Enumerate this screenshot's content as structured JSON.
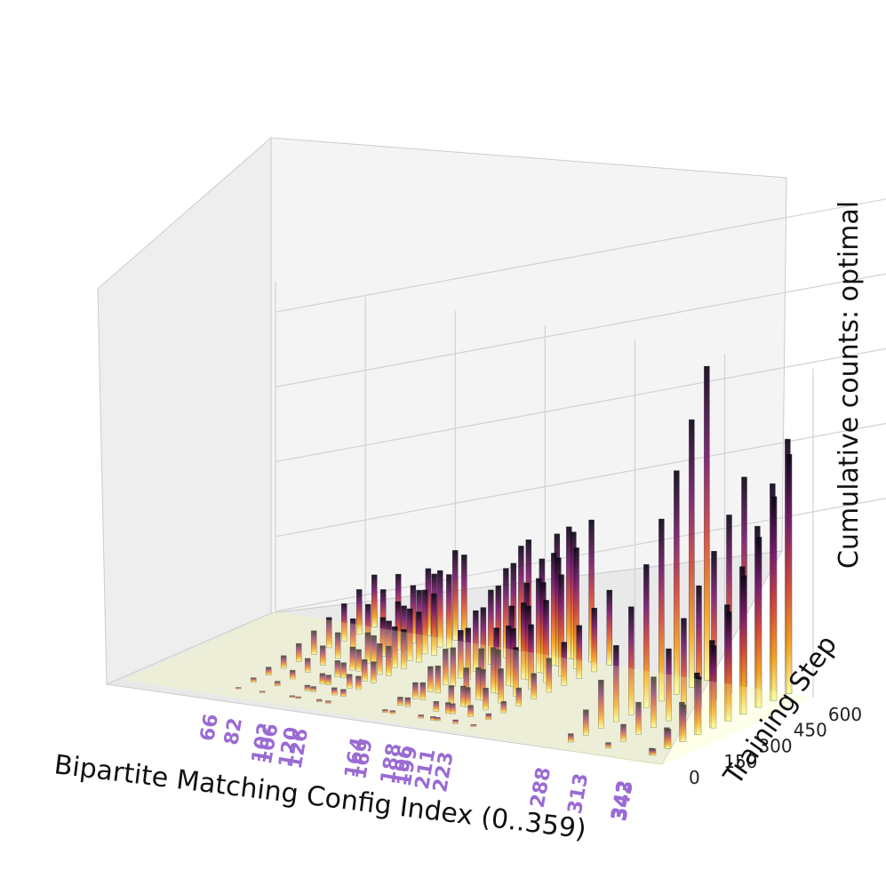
{
  "chart_data": {
    "type": "3d-bar-waterfall",
    "title": "",
    "xlabel": "Bipartite Matching Config Index (0..359)",
    "ylabel": "Training Step",
    "zlabel": "Cumulative counts: optimal",
    "xlim": [
      0,
      359
    ],
    "ylim": [
      0,
      650
    ],
    "zlim": [
      0,
      220
    ],
    "y_ticks": [
      "0",
      "150",
      "300",
      "450",
      "600"
    ],
    "z_ticks": [
      "0",
      "50",
      "100",
      "150",
      "200"
    ],
    "highlighted_x_ticks": [
      "66",
      "82",
      "102",
      "106",
      "120",
      "126",
      "164",
      "169",
      "188",
      "196",
      "199",
      "211",
      "223",
      "288",
      "313",
      "342",
      "343"
    ],
    "colormap": "inferno_r",
    "grid": true,
    "peaks": [
      {
        "x": 66,
        "z": 35
      },
      {
        "x": 82,
        "z": 38
      },
      {
        "x": 102,
        "z": 45
      },
      {
        "x": 106,
        "z": 42
      },
      {
        "x": 120,
        "z": 60
      },
      {
        "x": 126,
        "z": 58
      },
      {
        "x": 164,
        "z": 70
      },
      {
        "x": 169,
        "z": 75
      },
      {
        "x": 188,
        "z": 82
      },
      {
        "x": 196,
        "z": 88
      },
      {
        "x": 199,
        "z": 85
      },
      {
        "x": 211,
        "z": 95
      },
      {
        "x": 223,
        "z": 50
      },
      {
        "x": 288,
        "z": 210
      },
      {
        "x": 313,
        "z": 140
      },
      {
        "x": 342,
        "z": 170
      },
      {
        "x": 343,
        "z": 160
      }
    ]
  }
}
